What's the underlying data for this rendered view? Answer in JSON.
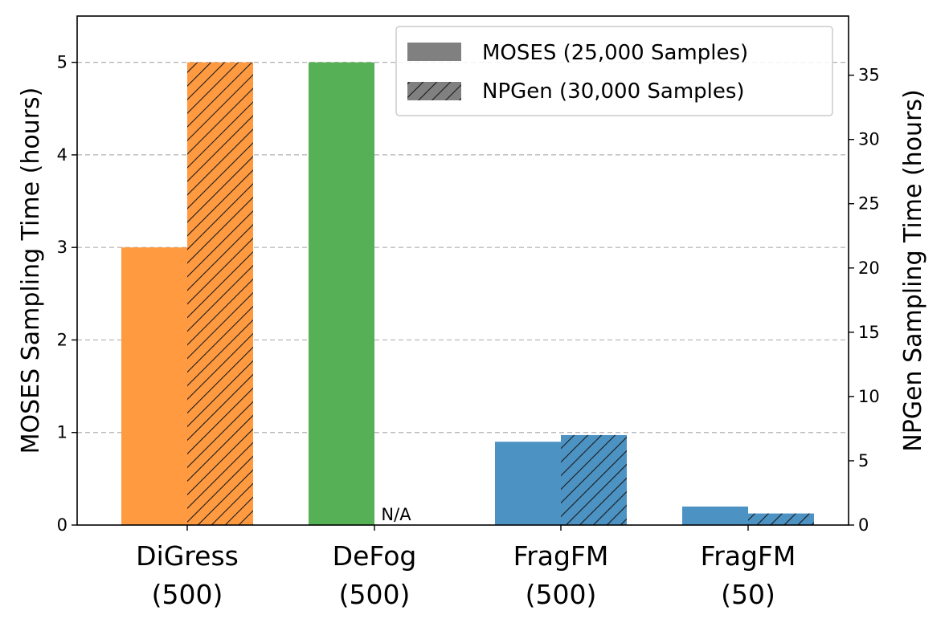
{
  "chart_data": {
    "type": "bar",
    "categories": [
      {
        "line1": "DiGress",
        "line2": "(500)",
        "color": "#ff9a41"
      },
      {
        "line1": "DeFog",
        "line2": "(500)",
        "color": "#56b156"
      },
      {
        "line1": "FragFM",
        "line2": "(500)",
        "color": "#4c92c3"
      },
      {
        "line1": "FragFM",
        "line2": "(50)",
        "color": "#4c92c3"
      }
    ],
    "series": [
      {
        "name": "MOSES (25,000 Samples)",
        "axis": "left",
        "hatch": false,
        "values": [
          3.0,
          5.0,
          0.9,
          0.2
        ]
      },
      {
        "name": "NPGen (30,000 Samples)",
        "axis": "right",
        "hatch": true,
        "values": [
          36.0,
          null,
          7.0,
          0.9
        ]
      }
    ],
    "missing_label": "N/A",
    "left_axis": {
      "label": "MOSES Sampling Time (hours)",
      "ylim": [
        0,
        5.5
      ],
      "ticks": [
        "0",
        "1",
        "2",
        "3",
        "4",
        "5"
      ]
    },
    "right_axis": {
      "label": "NPGen Sampling Time (hours)",
      "ylim": [
        0,
        39.6
      ],
      "ticks": [
        "0",
        "5",
        "10",
        "15",
        "20",
        "25",
        "30",
        "35"
      ]
    },
    "grid": "horizontal dashed",
    "legend_position": "top-right",
    "legend_swatch_color": "#808080"
  }
}
